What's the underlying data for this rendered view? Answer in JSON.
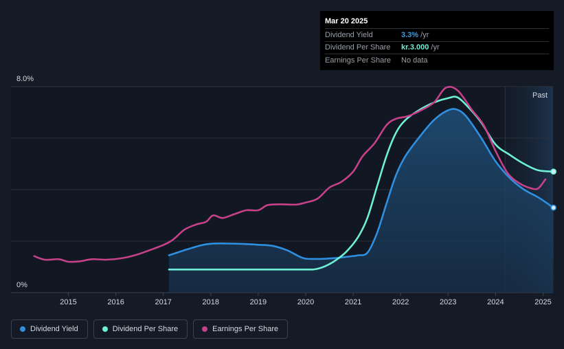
{
  "chart_data": {
    "type": "line",
    "y_axis": {
      "top_label": "8.0%",
      "bottom_label": "0%",
      "ylim": [
        0,
        8
      ],
      "unit": "%"
    },
    "x_ticks": [
      "2015",
      "2016",
      "2017",
      "2018",
      "2019",
      "2020",
      "2021",
      "2022",
      "2023",
      "2024",
      "2025"
    ],
    "xlim": [
      2014.2,
      2025.22
    ],
    "grid": true,
    "past_label": "Past",
    "past_start": 2024.2,
    "series": [
      {
        "name": "Dividend Yield",
        "color": "#2f8fe0",
        "fill": true,
        "end_marker": true,
        "points": [
          [
            2017.12,
            1.45
          ],
          [
            2017.5,
            1.68
          ],
          [
            2017.8,
            1.84
          ],
          [
            2018.0,
            1.9
          ],
          [
            2018.3,
            1.91
          ],
          [
            2018.7,
            1.89
          ],
          [
            2019.0,
            1.86
          ],
          [
            2019.3,
            1.82
          ],
          [
            2019.6,
            1.65
          ],
          [
            2019.85,
            1.42
          ],
          [
            2020.0,
            1.32
          ],
          [
            2020.3,
            1.31
          ],
          [
            2020.6,
            1.34
          ],
          [
            2020.9,
            1.4
          ],
          [
            2021.1,
            1.45
          ],
          [
            2021.3,
            1.55
          ],
          [
            2021.5,
            2.3
          ],
          [
            2021.7,
            3.45
          ],
          [
            2021.9,
            4.55
          ],
          [
            2022.1,
            5.3
          ],
          [
            2022.4,
            6.05
          ],
          [
            2022.7,
            6.7
          ],
          [
            2023.0,
            7.08
          ],
          [
            2023.2,
            7.1
          ],
          [
            2023.4,
            6.8
          ],
          [
            2023.7,
            6.0
          ],
          [
            2024.0,
            5.1
          ],
          [
            2024.3,
            4.45
          ],
          [
            2024.6,
            4.0
          ],
          [
            2024.9,
            3.7
          ],
          [
            2025.22,
            3.3
          ]
        ]
      },
      {
        "name": "Dividend Per Share",
        "color": "#6ff0d6",
        "fill": false,
        "end_marker": true,
        "points": [
          [
            2017.12,
            0.9
          ],
          [
            2018.0,
            0.9
          ],
          [
            2019.0,
            0.9
          ],
          [
            2020.0,
            0.9
          ],
          [
            2020.2,
            0.91
          ],
          [
            2020.4,
            1.02
          ],
          [
            2020.6,
            1.22
          ],
          [
            2020.85,
            1.58
          ],
          [
            2021.1,
            2.15
          ],
          [
            2021.3,
            2.9
          ],
          [
            2021.5,
            4.1
          ],
          [
            2021.7,
            5.3
          ],
          [
            2021.9,
            6.2
          ],
          [
            2022.1,
            6.7
          ],
          [
            2022.4,
            7.1
          ],
          [
            2022.7,
            7.38
          ],
          [
            2023.0,
            7.55
          ],
          [
            2023.2,
            7.58
          ],
          [
            2023.45,
            7.15
          ],
          [
            2023.7,
            6.6
          ],
          [
            2024.0,
            5.75
          ],
          [
            2024.3,
            5.35
          ],
          [
            2024.6,
            5.0
          ],
          [
            2024.9,
            4.75
          ],
          [
            2025.22,
            4.7
          ]
        ]
      },
      {
        "name": "Earnings Per Share",
        "color": "#c6418a",
        "fill": false,
        "end_marker": false,
        "points": [
          [
            2014.28,
            1.42
          ],
          [
            2014.5,
            1.28
          ],
          [
            2014.8,
            1.3
          ],
          [
            2015.0,
            1.2
          ],
          [
            2015.25,
            1.22
          ],
          [
            2015.5,
            1.3
          ],
          [
            2015.8,
            1.28
          ],
          [
            2016.1,
            1.33
          ],
          [
            2016.4,
            1.45
          ],
          [
            2016.7,
            1.64
          ],
          [
            2017.0,
            1.85
          ],
          [
            2017.2,
            2.05
          ],
          [
            2017.45,
            2.45
          ],
          [
            2017.7,
            2.65
          ],
          [
            2017.9,
            2.75
          ],
          [
            2018.05,
            3.0
          ],
          [
            2018.25,
            2.9
          ],
          [
            2018.5,
            3.05
          ],
          [
            2018.75,
            3.2
          ],
          [
            2019.0,
            3.2
          ],
          [
            2019.2,
            3.4
          ],
          [
            2019.5,
            3.43
          ],
          [
            2019.8,
            3.42
          ],
          [
            2020.0,
            3.5
          ],
          [
            2020.25,
            3.65
          ],
          [
            2020.5,
            4.08
          ],
          [
            2020.75,
            4.3
          ],
          [
            2021.0,
            4.7
          ],
          [
            2021.2,
            5.3
          ],
          [
            2021.45,
            5.8
          ],
          [
            2021.7,
            6.5
          ],
          [
            2021.9,
            6.75
          ],
          [
            2022.15,
            6.85
          ],
          [
            2022.4,
            7.05
          ],
          [
            2022.7,
            7.38
          ],
          [
            2022.95,
            7.95
          ],
          [
            2023.2,
            7.85
          ],
          [
            2023.5,
            7.1
          ],
          [
            2023.75,
            6.5
          ],
          [
            2024.0,
            5.5
          ],
          [
            2024.25,
            4.65
          ],
          [
            2024.5,
            4.25
          ],
          [
            2024.75,
            4.05
          ],
          [
            2024.9,
            4.05
          ],
          [
            2025.05,
            4.4
          ]
        ]
      }
    ]
  },
  "tooltip": {
    "date": "Mar 20 2025",
    "rows": [
      {
        "label": "Dividend Yield",
        "value": "3.3%",
        "suffix": " /yr",
        "value_color": "#3d9be0"
      },
      {
        "label": "Dividend Per Share",
        "value": "kr.3.000",
        "suffix": " /yr",
        "value_color": "#6ff0d6"
      },
      {
        "label": "Earnings Per Share",
        "value": "No data",
        "suffix": "",
        "value_color": ""
      }
    ]
  },
  "legend": [
    {
      "label": "Dividend Yield",
      "color": "#2f8fe0"
    },
    {
      "label": "Dividend Per Share",
      "color": "#6ff0d6"
    },
    {
      "label": "Earnings Per Share",
      "color": "#c6418a"
    }
  ]
}
